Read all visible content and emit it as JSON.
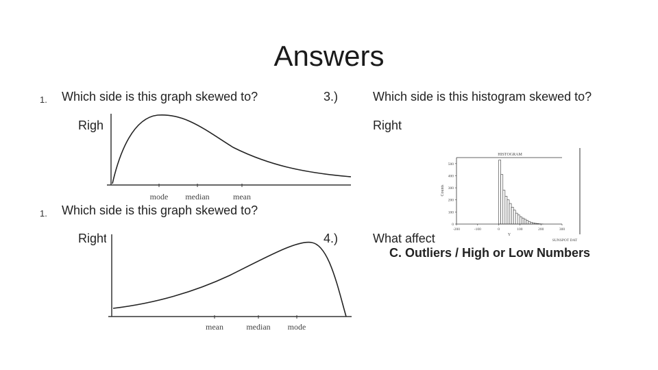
{
  "slide": {
    "title": "Answers",
    "q1": {
      "number": "1.",
      "question": "Which side is this graph skewed to?",
      "answer": "Righ"
    },
    "q2": {
      "number": "1.",
      "question": "Which side is this graph skewed to?",
      "answer": "Right"
    },
    "q3": {
      "number": "3.)",
      "question": "Which side is this histogram skewed to?",
      "answer": "Right"
    },
    "q4": {
      "number": "4.)",
      "question": "What affect",
      "answer": "C. Outliers / High or Low Numbers"
    }
  },
  "figures": {
    "curve1": {
      "labels": [
        "mode",
        "median",
        "mean"
      ]
    },
    "curve2": {
      "labels": [
        "mean",
        "median",
        "mode"
      ]
    },
    "histogram": {
      "title": "HISTOGRAM",
      "ylabel": "Counts",
      "xlabel": "Y",
      "footer": "SUNSPOT DAT",
      "yticks": [
        "500",
        "400",
        "300",
        "200",
        "100",
        "0"
      ],
      "xticks": [
        "-200",
        "-100",
        "0",
        "100",
        "200",
        "300"
      ]
    }
  },
  "chart_data": {
    "type": "bar",
    "title": "HISTOGRAM",
    "xlabel": "Y",
    "ylabel": "Counts",
    "xlim": [
      -200,
      300
    ],
    "ylim": [
      0,
      550
    ],
    "bin_starts": [
      0,
      10,
      20,
      30,
      40,
      50,
      60,
      70,
      80,
      90,
      100,
      110,
      120,
      130,
      140,
      150,
      160,
      170,
      180,
      190,
      200
    ],
    "bin_width": 10,
    "values": [
      530,
      410,
      280,
      230,
      200,
      170,
      140,
      115,
      90,
      75,
      60,
      50,
      40,
      30,
      20,
      14,
      10,
      6,
      4,
      2,
      1
    ]
  }
}
